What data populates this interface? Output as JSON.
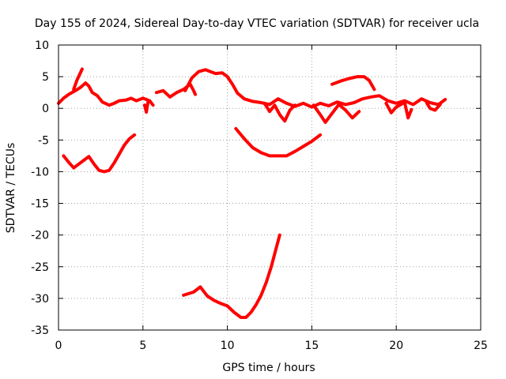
{
  "chart_data": {
    "type": "line",
    "title": "Day 155 of 2024, Sidereal Day-to-day VTEC variation (SDTVAR) for receiver ucla",
    "xlabel": "GPS time / hours",
    "ylabel": "SDTVAR / TECUs",
    "xlim": [
      0,
      25
    ],
    "ylim": [
      -35,
      10
    ],
    "xticks": [
      0,
      5,
      10,
      15,
      20,
      25
    ],
    "yticks": [
      -35,
      -30,
      -25,
      -20,
      -15,
      -10,
      -5,
      0,
      5,
      10
    ],
    "grid": true,
    "colors": {
      "series": "#ff0000",
      "grid": "#a0a0a0",
      "frame": "#000000"
    },
    "series": [
      {
        "name": "arc-main-upper",
        "x": [
          0.0,
          0.3,
          0.6,
          1.0,
          1.3,
          1.6,
          1.8,
          2.0,
          2.3,
          2.6,
          3.0,
          3.3,
          3.6,
          4.0,
          4.3,
          4.6,
          5.0,
          5.4,
          5.6
        ],
        "y": [
          0.8,
          1.6,
          2.2,
          2.8,
          3.3,
          4.0,
          3.5,
          2.5,
          2.0,
          1.0,
          0.5,
          0.8,
          1.2,
          1.3,
          1.6,
          1.2,
          1.6,
          1.2,
          0.5
        ]
      },
      {
        "name": "arc-spike-1h",
        "x": [
          0.9,
          1.1,
          1.4
        ],
        "y": [
          3.0,
          4.5,
          6.2
        ]
      },
      {
        "name": "arc-dip-5h",
        "x": [
          5.1,
          5.2,
          5.3
        ],
        "y": [
          0.5,
          -0.6,
          1.0
        ]
      },
      {
        "name": "arc-mid-6h",
        "x": [
          5.8,
          6.2,
          6.6,
          7.0,
          7.4,
          7.8,
          8.0,
          8.1
        ],
        "y": [
          2.5,
          2.8,
          1.8,
          2.5,
          3.0,
          3.8,
          2.8,
          2.2
        ]
      },
      {
        "name": "arc-peak-9h",
        "x": [
          7.5,
          7.9,
          8.3,
          8.7,
          9.0,
          9.3,
          9.7,
          10.0,
          10.3,
          10.6,
          11.0,
          11.5,
          12.0
        ],
        "y": [
          2.8,
          4.8,
          5.8,
          6.1,
          5.8,
          5.5,
          5.6,
          5.0,
          3.8,
          2.4,
          1.5,
          1.1,
          0.9
        ]
      },
      {
        "name": "arc-upper-12h",
        "x": [
          12.0,
          12.5,
          13.0,
          13.5,
          14.0,
          14.5,
          15.0,
          15.5,
          16.0,
          16.5,
          17.0,
          17.5,
          18.0,
          18.5,
          19.0,
          19.5,
          20.0,
          20.5,
          21.0,
          21.5,
          22.0,
          22.5,
          22.9
        ],
        "y": [
          0.9,
          0.6,
          1.5,
          0.8,
          0.3,
          0.8,
          0.2,
          0.8,
          0.4,
          1.0,
          0.6,
          0.9,
          1.5,
          1.8,
          2.0,
          1.2,
          0.8,
          1.2,
          0.6,
          1.5,
          0.9,
          0.6,
          1.4
        ]
      },
      {
        "name": "arc-dip-13h",
        "x": [
          12.2,
          12.5,
          12.8,
          13.1,
          13.4,
          13.7,
          14.0
        ],
        "y": [
          0.8,
          -0.5,
          0.5,
          -1.0,
          -2.0,
          -0.3,
          0.5
        ]
      },
      {
        "name": "arc-dip-15h",
        "x": [
          15.1,
          15.5,
          15.8,
          16.2,
          16.6
        ],
        "y": [
          0.5,
          -1.0,
          -2.2,
          -0.8,
          0.6
        ]
      },
      {
        "name": "arc-dip-17h",
        "x": [
          16.7,
          17.0,
          17.4,
          17.8
        ],
        "y": [
          0.4,
          -0.3,
          -1.5,
          -0.5
        ]
      },
      {
        "name": "arc-hump-17h",
        "x": [
          16.2,
          16.7,
          17.2,
          17.7,
          18.1,
          18.4,
          18.7
        ],
        "y": [
          3.8,
          4.3,
          4.7,
          5.0,
          5.0,
          4.4,
          3.0
        ]
      },
      {
        "name": "arc-dip-20h",
        "x": [
          19.4,
          19.7,
          20.0,
          20.4
        ],
        "y": [
          0.8,
          -0.7,
          0.2,
          0.8
        ]
      },
      {
        "name": "arc-dip-21h",
        "x": [
          20.5,
          20.7,
          20.9
        ],
        "y": [
          0.9,
          -1.5,
          -0.2
        ]
      },
      {
        "name": "arc-dip-22h",
        "x": [
          21.8,
          22.0,
          22.3,
          22.6
        ],
        "y": [
          0.9,
          0.0,
          -0.3,
          0.6
        ]
      },
      {
        "name": "arc-low-left",
        "x": [
          0.3,
          0.6,
          0.9,
          1.2,
          1.5,
          1.8,
          2.1,
          2.4,
          2.7,
          3.0,
          3.3,
          3.6,
          3.9,
          4.2,
          4.5
        ],
        "y": [
          -7.5,
          -8.5,
          -9.4,
          -8.8,
          -8.2,
          -7.6,
          -8.8,
          -9.8,
          -10.0,
          -9.8,
          -8.6,
          -7.2,
          -5.8,
          -4.8,
          -4.2
        ]
      },
      {
        "name": "arc-low-mid",
        "x": [
          10.5,
          11.0,
          11.5,
          12.0,
          12.5,
          13.0,
          13.5,
          14.0,
          14.5,
          15.0,
          15.5
        ],
        "y": [
          -3.2,
          -4.8,
          -6.2,
          -7.0,
          -7.5,
          -7.5,
          -7.5,
          -6.8,
          -6.0,
          -5.2,
          -4.2
        ]
      },
      {
        "name": "arc-deep",
        "x": [
          7.4,
          8.0,
          8.4,
          8.8,
          9.2,
          9.6,
          10.0,
          10.4,
          10.8,
          11.1,
          11.4,
          11.7,
          12.0,
          12.3,
          12.6,
          12.9,
          13.1
        ],
        "y": [
          -29.5,
          -29.0,
          -28.2,
          -29.6,
          -30.3,
          -30.8,
          -31.2,
          -32.2,
          -33.0,
          -33.0,
          -32.2,
          -31.0,
          -29.5,
          -27.5,
          -25.0,
          -22.0,
          -20.0
        ]
      }
    ]
  }
}
